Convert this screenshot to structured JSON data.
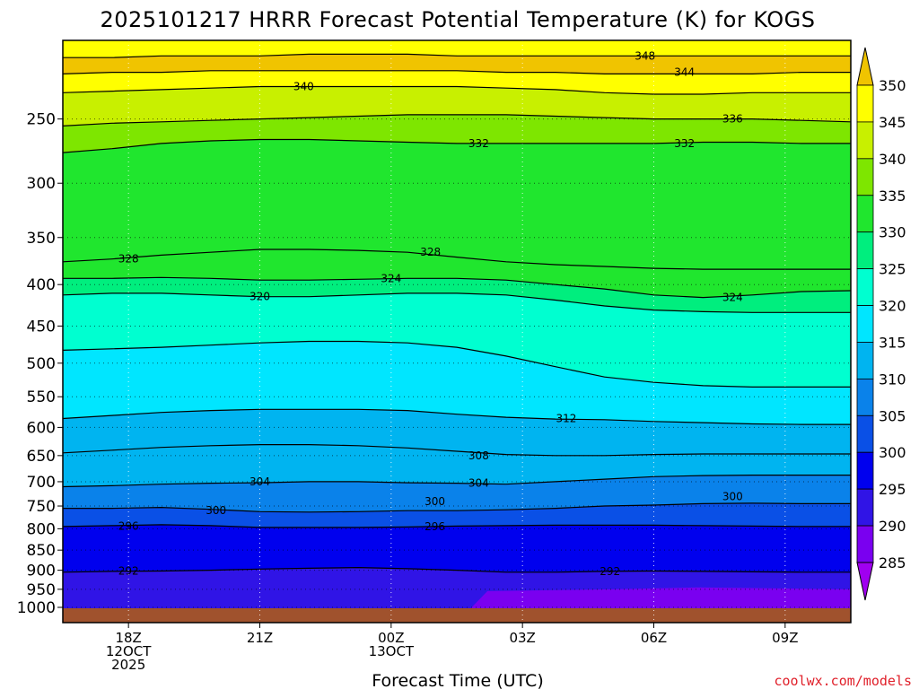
{
  "chart_data": {
    "type": "heatmap",
    "title": "2025101217 HRRR Forecast Potential Temperature (K) for KOGS",
    "xlabel": "Forecast Time (UTC)",
    "ylabel": "",
    "credit": "coolwx.com/models",
    "y_scale": "log (pressure, hPa, inverted)",
    "ylim": [
      1000,
      200
    ],
    "y_ticks": [
      250,
      300,
      350,
      400,
      450,
      500,
      550,
      600,
      650,
      700,
      750,
      800,
      850,
      900,
      950,
      1000
    ],
    "xlim_hours": [
      -1.5,
      16.5
    ],
    "x_ticks": [
      {
        "hour": 0,
        "lines": [
          "18Z",
          "12OCT",
          "2025"
        ]
      },
      {
        "hour": 3,
        "lines": [
          "21Z"
        ]
      },
      {
        "hour": 6,
        "lines": [
          "00Z",
          "13OCT"
        ]
      },
      {
        "hour": 9,
        "lines": [
          "03Z"
        ]
      },
      {
        "hour": 12,
        "lines": [
          "06Z"
        ]
      },
      {
        "hour": 15,
        "lines": [
          "09Z"
        ]
      }
    ],
    "grid": "dotted",
    "colorbar": {
      "ticks": [
        350,
        345,
        340,
        335,
        330,
        325,
        320,
        315,
        310,
        305,
        300,
        295,
        290,
        285
      ],
      "bins": [
        {
          "range": [
            345,
            350
          ],
          "color": "#ffff00"
        },
        {
          "range": [
            340,
            345
          ],
          "color": "#c8f000"
        },
        {
          "range": [
            335,
            340
          ],
          "color": "#7ee600"
        },
        {
          "range": [
            330,
            335
          ],
          "color": "#20e62e"
        },
        {
          "range": [
            325,
            330
          ],
          "color": "#00ee7e"
        },
        {
          "range": [
            320,
            325
          ],
          "color": "#00ffd0"
        },
        {
          "range": [
            315,
            320
          ],
          "color": "#00e6ff"
        },
        {
          "range": [
            310,
            315
          ],
          "color": "#00b4f0"
        },
        {
          "range": [
            305,
            310
          ],
          "color": "#0a82ea"
        },
        {
          "range": [
            300,
            305
          ],
          "color": "#0a50e6"
        },
        {
          "range": [
            295,
            300
          ],
          "color": "#0000ee"
        },
        {
          "range": [
            290,
            295
          ],
          "color": "#3014e6"
        },
        {
          "range": [
            285,
            290
          ],
          "color": "#7a00f0"
        }
      ],
      "over_color": "#f0c400",
      "under_color": "#a000f0"
    },
    "ground_color": "#a0522d",
    "levels": [
      {
        "theta": 292,
        "p": [
          905,
          903,
          902,
          900,
          897,
          895,
          893,
          896,
          900,
          905,
          905,
          903,
          902,
          903,
          904,
          905,
          905
        ]
      },
      {
        "theta": 296,
        "p": [
          795,
          793,
          791,
          793,
          797,
          797,
          797,
          796,
          794,
          793,
          792,
          792,
          792,
          793,
          794,
          795,
          795
        ]
      },
      {
        "theta": 300,
        "p": [
          755,
          755,
          753,
          757,
          762,
          763,
          762,
          760,
          760,
          758,
          755,
          750,
          748,
          745,
          744,
          745,
          745
        ]
      },
      {
        "theta": 304,
        "p": [
          710,
          708,
          705,
          703,
          702,
          700,
          700,
          702,
          703,
          705,
          700,
          695,
          690,
          688,
          687,
          687,
          687
        ]
      },
      {
        "theta": 308,
        "p": [
          645,
          640,
          635,
          632,
          630,
          630,
          632,
          636,
          642,
          648,
          650,
          650,
          648,
          647,
          647,
          647,
          647
        ]
      },
      {
        "theta": 312,
        "p": [
          585,
          580,
          575,
          572,
          570,
          570,
          570,
          572,
          578,
          583,
          586,
          587,
          590,
          592,
          594,
          595,
          595
        ]
      },
      {
        "theta": 316,
        "p": [
          482,
          480,
          478,
          475,
          472,
          470,
          470,
          472,
          478,
          490,
          505,
          520,
          528,
          533,
          535,
          535,
          535
        ]
      },
      {
        "theta": 320,
        "p": [
          412,
          410,
          410,
          412,
          414,
          414,
          412,
          410,
          410,
          412,
          418,
          425,
          430,
          432,
          433,
          433,
          433
        ]
      },
      {
        "theta": 324,
        "p": [
          393,
          393,
          392,
          393,
          395,
          395,
          394,
          393,
          393,
          395,
          400,
          405,
          412,
          415,
          412,
          408,
          407
        ]
      },
      {
        "theta": 328,
        "p": [
          375,
          372,
          368,
          365,
          362,
          362,
          363,
          365,
          370,
          375,
          378,
          380,
          382,
          383,
          383,
          383,
          383
        ]
      },
      {
        "theta": 332,
        "p": [
          275,
          272,
          268,
          266,
          265,
          265,
          266,
          267,
          268,
          268,
          268,
          268,
          268,
          267,
          267,
          268,
          268
        ]
      },
      {
        "theta": 336,
        "p": [
          255,
          253,
          252,
          251,
          250,
          249,
          248,
          247,
          247,
          247,
          248,
          249,
          250,
          250,
          250,
          251,
          252
        ]
      },
      {
        "theta": 340,
        "p": [
          232,
          231,
          230,
          229,
          228,
          228,
          228,
          228,
          228,
          229,
          230,
          232,
          233,
          233,
          232,
          232,
          232
        ]
      },
      {
        "theta": 344,
        "p": [
          220,
          219,
          219,
          218,
          218,
          218,
          218,
          218,
          218,
          219,
          219,
          220,
          220,
          220,
          220,
          219,
          219
        ]
      },
      {
        "theta": 348,
        "p": [
          210,
          210,
          209,
          209,
          209,
          208,
          208,
          208,
          209,
          209,
          209,
          209,
          209,
          209,
          209,
          209,
          209
        ]
      }
    ],
    "level_hours": [
      -1.5,
      -0.375,
      0.75,
      1.875,
      3,
      4.125,
      5.25,
      6.375,
      7.5,
      8.625,
      9.75,
      10.875,
      12,
      13.125,
      14.25,
      15.375,
      16.5
    ],
    "contour_labels": [
      {
        "text": "348",
        "hour": 11.8,
        "p": 209
      },
      {
        "text": "344",
        "hour": 12.7,
        "p": 219
      },
      {
        "text": "340",
        "hour": 4.0,
        "p": 228
      },
      {
        "text": "336",
        "hour": 13.8,
        "p": 250
      },
      {
        "text": "332",
        "hour": 8.0,
        "p": 268
      },
      {
        "text": "332",
        "hour": 12.7,
        "p": 268
      },
      {
        "text": "328",
        "hour": 6.9,
        "p": 365
      },
      {
        "text": "328",
        "hour": 0.0,
        "p": 372
      },
      {
        "text": "324",
        "hour": 6.0,
        "p": 393
      },
      {
        "text": "324",
        "hour": 13.8,
        "p": 415
      },
      {
        "text": "320",
        "hour": 3.0,
        "p": 414
      },
      {
        "text": "312",
        "hour": 10.0,
        "p": 585
      },
      {
        "text": "308",
        "hour": 8.0,
        "p": 650
      },
      {
        "text": "304",
        "hour": 3.0,
        "p": 700
      },
      {
        "text": "304",
        "hour": 8.0,
        "p": 703
      },
      {
        "text": "300",
        "hour": 2.0,
        "p": 760
      },
      {
        "text": "300",
        "hour": 7.0,
        "p": 740
      },
      {
        "text": "300",
        "hour": 13.8,
        "p": 730
      },
      {
        "text": "296",
        "hour": 7.0,
        "p": 795
      },
      {
        "text": "296",
        "hour": 0.0,
        "p": 794
      },
      {
        "text": "292",
        "hour": 0.0,
        "p": 902
      },
      {
        "text": "292",
        "hour": 11.0,
        "p": 903
      }
    ]
  }
}
